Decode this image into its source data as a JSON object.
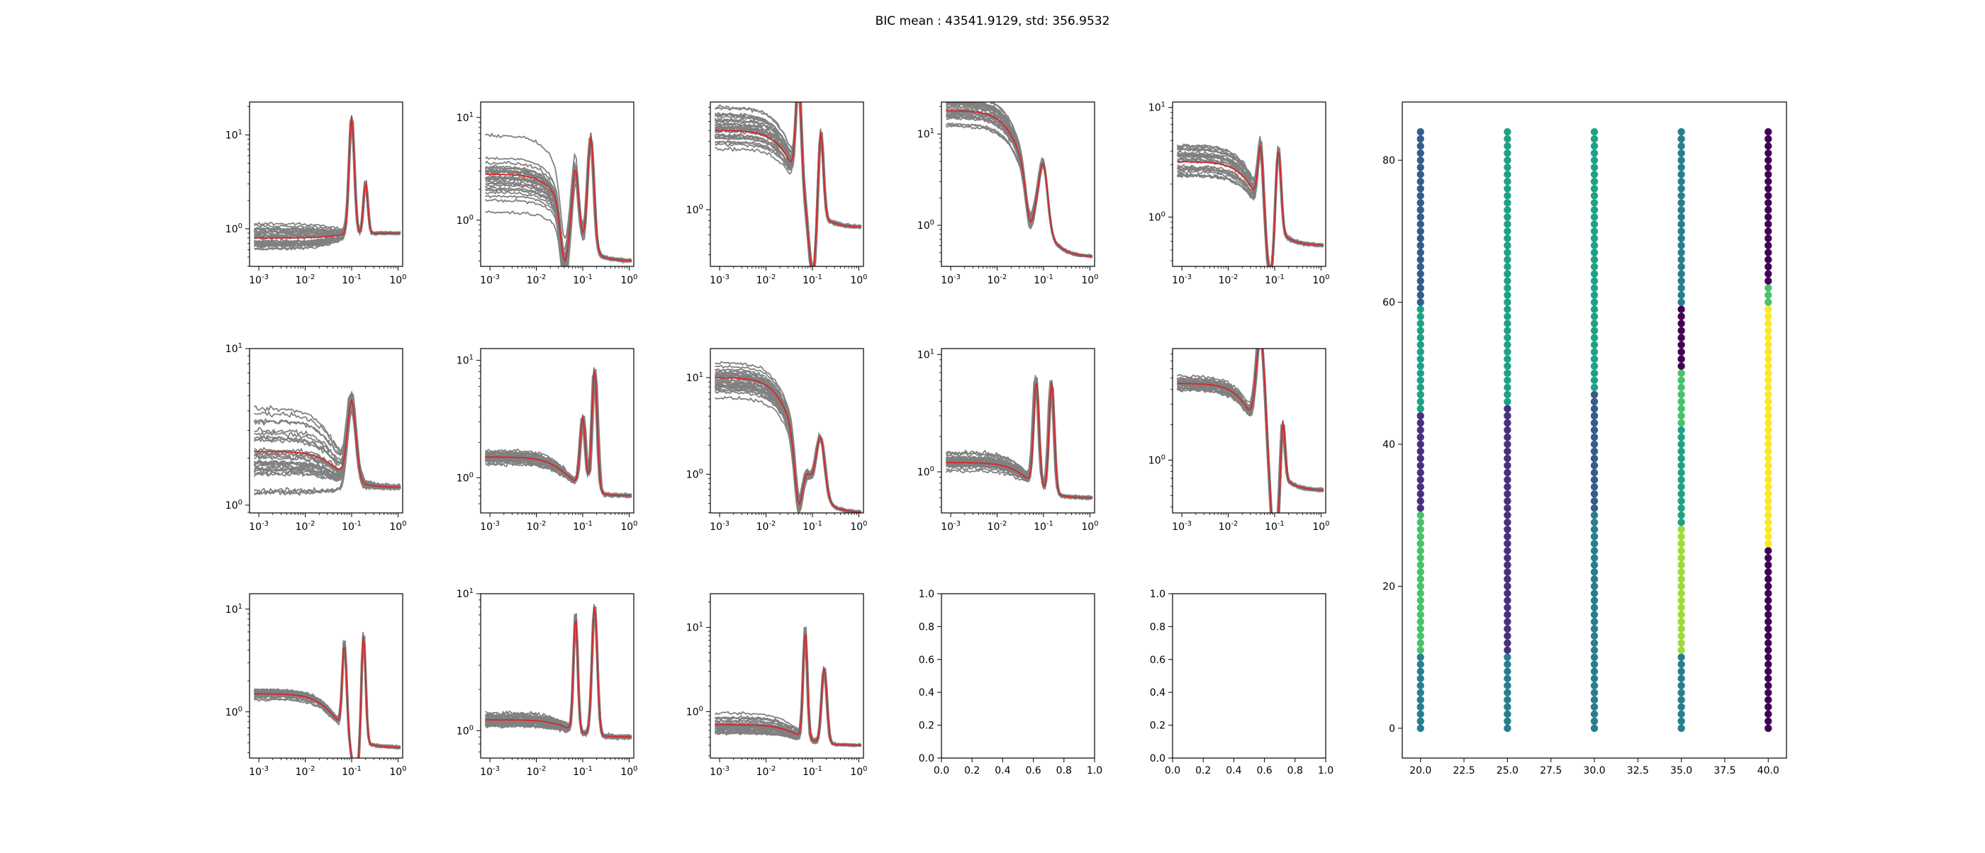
{
  "figure": {
    "suptitle": "BIC mean : 43541.9129, std: 356.9532"
  },
  "colors": {
    "sample_line": "#808080",
    "mean_line": "#d62728",
    "axes": "#000000",
    "viridis": [
      "#440154",
      "#46327e",
      "#365c8d",
      "#277f8e",
      "#1fa187",
      "#4ac16d",
      "#a0da39",
      "#fde725"
    ]
  },
  "chart_data": [
    {
      "type": "line",
      "scale": "loglog",
      "x_ticks": [
        "10-3",
        "10-2",
        "10-1",
        "100"
      ],
      "y_ticks": [
        "100",
        "101"
      ],
      "ylim_log": [
        -0.4,
        1.35
      ],
      "peaks": [
        [
          0.1,
          1.25,
          0.05
        ],
        [
          0.2,
          0.55,
          0.04
        ]
      ],
      "base": 0.8,
      "tail": 0.9,
      "spread": 0.35,
      "n_samples": 30
    },
    {
      "type": "line",
      "scale": "loglog",
      "x_ticks": [
        "10-3",
        "10-2",
        "10-1",
        "100"
      ],
      "y_ticks": [
        "100",
        "101"
      ],
      "ylim_log": [
        -0.45,
        1.15
      ],
      "peaks": [
        [
          0.07,
          0.6,
          0.06
        ],
        [
          0.15,
          1.1,
          0.06
        ]
      ],
      "dip": [
        0.04,
        -0.1
      ],
      "base": 2.8,
      "tail": 0.4,
      "spread": 0.55,
      "n_samples": 30
    },
    {
      "type": "line",
      "scale": "loglog",
      "x_ticks": [
        "10-3",
        "10-2",
        "10-1",
        "100"
      ],
      "y_ticks": [
        "100"
      ],
      "ylim_log": [
        -0.5,
        0.95
      ],
      "peaks": [
        [
          0.05,
          0.9,
          0.05
        ],
        [
          0.15,
          0.8,
          0.05
        ]
      ],
      "dip": [
        0.1,
        -0.2
      ],
      "base": 5.0,
      "tail": 0.7,
      "spread": 0.35,
      "n_samples": 30
    },
    {
      "type": "line",
      "scale": "loglog",
      "x_ticks": [
        "10-3",
        "10-2",
        "10-1",
        "100"
      ],
      "y_ticks": [
        "100",
        "101"
      ],
      "ylim_log": [
        -0.45,
        1.35
      ],
      "peaks": [
        [
          0.1,
          0.65,
          0.08
        ]
      ],
      "dip": [
        0.05,
        0.0
      ],
      "base": 18.0,
      "tail": 0.45,
      "spread": 0.3,
      "n_samples": 30
    },
    {
      "type": "line",
      "scale": "loglog",
      "x_ticks": [
        "10-3",
        "10-2",
        "10-1",
        "100"
      ],
      "y_ticks": [
        "100",
        "101"
      ],
      "ylim_log": [
        -0.45,
        1.05
      ],
      "peaks": [
        [
          0.05,
          0.55,
          0.05
        ],
        [
          0.12,
          0.8,
          0.05
        ]
      ],
      "dip": [
        0.08,
        -0.1
      ],
      "base": 3.2,
      "tail": 0.55,
      "spread": 0.35,
      "n_samples": 30
    },
    {
      "type": "line",
      "scale": "loglog",
      "x_ticks": [
        "10-3",
        "10-2",
        "10-1",
        "100"
      ],
      "y_ticks": [
        "100",
        "101"
      ],
      "ylim_log": [
        -0.05,
        1.0
      ],
      "peaks": [
        [
          0.1,
          0.5,
          0.08
        ]
      ],
      "base": 2.2,
      "tail": 1.3,
      "spread": 0.6,
      "n_samples": 30
    },
    {
      "type": "line",
      "scale": "loglog",
      "x_ticks": [
        "10-3",
        "10-2",
        "10-1",
        "100"
      ],
      "y_ticks": [
        "100",
        "101"
      ],
      "ylim_log": [
        -0.3,
        1.1
      ],
      "peaks": [
        [
          0.1,
          0.6,
          0.05
        ],
        [
          0.18,
          1.05,
          0.05
        ]
      ],
      "base": 1.5,
      "tail": 0.7,
      "spread": 0.15,
      "n_samples": 30
    },
    {
      "type": "line",
      "scale": "loglog",
      "x_ticks": [
        "10-3",
        "10-2",
        "10-1",
        "100"
      ],
      "y_ticks": [
        "100",
        "101"
      ],
      "ylim_log": [
        -0.4,
        1.3
      ],
      "peaks": [
        [
          0.15,
          0.6,
          0.08
        ]
      ],
      "dip": [
        0.05,
        -0.2
      ],
      "base": 10.0,
      "tail": 0.4,
      "spread": 0.35,
      "n_samples": 30
    },
    {
      "type": "line",
      "scale": "loglog",
      "x_ticks": [
        "10-3",
        "10-2",
        "10-1",
        "100"
      ],
      "y_ticks": [
        "100",
        "101"
      ],
      "ylim_log": [
        -0.35,
        1.05
      ],
      "peaks": [
        [
          0.07,
          0.9,
          0.05
        ],
        [
          0.15,
          0.95,
          0.05
        ]
      ],
      "base": 1.2,
      "tail": 0.6,
      "spread": 0.12,
      "n_samples": 30
    },
    {
      "type": "line",
      "scale": "loglog",
      "x_ticks": [
        "10-3",
        "10-2",
        "10-1",
        "100"
      ],
      "y_ticks": [
        "100"
      ],
      "ylim_log": [
        -0.45,
        0.95
      ],
      "peaks": [
        [
          0.05,
          0.88,
          0.08
        ],
        [
          0.15,
          0.55,
          0.04
        ]
      ],
      "dip": [
        0.1,
        -0.3
      ],
      "base": 4.5,
      "tail": 0.55,
      "spread": 0.12,
      "n_samples": 30
    },
    {
      "type": "line",
      "scale": "loglog",
      "x_ticks": [
        "10-3",
        "10-2",
        "10-1",
        "100"
      ],
      "y_ticks": [
        "100",
        "101"
      ],
      "ylim_log": [
        -0.45,
        1.15
      ],
      "peaks": [
        [
          0.07,
          0.85,
          0.04
        ],
        [
          0.18,
          1.1,
          0.04
        ]
      ],
      "dip": [
        0.12,
        0.05
      ],
      "base": 1.5,
      "tail": 0.45,
      "spread": 0.12,
      "n_samples": 30
    },
    {
      "type": "line",
      "scale": "loglog",
      "x_ticks": [
        "10-3",
        "10-2",
        "10-1",
        "100"
      ],
      "y_ticks": [
        "100",
        "101"
      ],
      "ylim_log": [
        -0.2,
        1.0
      ],
      "peaks": [
        [
          0.07,
          0.85,
          0.04
        ],
        [
          0.18,
          0.95,
          0.05
        ]
      ],
      "base": 1.2,
      "tail": 0.9,
      "spread": 0.1,
      "n_samples": 30
    },
    {
      "type": "line",
      "scale": "loglog",
      "x_ticks": [
        "10-3",
        "10-2",
        "10-1",
        "100"
      ],
      "y_ticks": [
        "100",
        "101"
      ],
      "ylim_log": [
        -0.55,
        1.4
      ],
      "peaks": [
        [
          0.07,
          1.3,
          0.04
        ],
        [
          0.18,
          0.9,
          0.05
        ]
      ],
      "base": 0.7,
      "tail": 0.4,
      "spread": 0.2,
      "n_samples": 30
    },
    {
      "type": "empty",
      "xlim": [
        0,
        1
      ],
      "ylim": [
        0,
        1
      ],
      "x_ticks": [
        "0.0",
        "0.2",
        "0.4",
        "0.6",
        "0.8",
        "1.0"
      ],
      "y_ticks": [
        "0.0",
        "0.2",
        "0.4",
        "0.6",
        "0.8",
        "1.0"
      ]
    },
    {
      "type": "empty",
      "xlim": [
        0,
        1
      ],
      "ylim": [
        0,
        1
      ],
      "x_ticks": [
        "0.0",
        "0.2",
        "0.4",
        "0.6",
        "0.8",
        "1.0"
      ],
      "y_ticks": [
        "0.0",
        "0.2",
        "0.4",
        "0.6",
        "0.8",
        "1.0"
      ]
    },
    {
      "type": "scatter",
      "xlim": [
        18.95,
        41.05
      ],
      "ylim": [
        -4.2,
        88.2
      ],
      "x_ticks": [
        "20.0",
        "22.5",
        "25.0",
        "27.5",
        "30.0",
        "32.5",
        "35.0",
        "37.5",
        "40.0"
      ],
      "y_ticks": [
        "0",
        "20",
        "40",
        "60",
        "80"
      ],
      "y_range": [
        0,
        84
      ],
      "columns": [
        {
          "x": 20.0,
          "segments": [
            [
              0,
              10,
              3
            ],
            [
              11,
              30,
              5
            ],
            [
              31,
              44,
              1
            ],
            [
              45,
              59,
              4
            ],
            [
              60,
              84,
              2
            ]
          ]
        },
        {
          "x": 25.0,
          "segments": [
            [
              0,
              10,
              3
            ],
            [
              11,
              45,
              1
            ],
            [
              46,
              84,
              4
            ]
          ]
        },
        {
          "x": 30.0,
          "segments": [
            [
              0,
              30,
              3
            ],
            [
              31,
              47,
              2
            ],
            [
              48,
              84,
              4
            ]
          ]
        },
        {
          "x": 35.0,
          "segments": [
            [
              0,
              10,
              3
            ],
            [
              11,
              28,
              6
            ],
            [
              29,
              42,
              4
            ],
            [
              43,
              50,
              5
            ],
            [
              51,
              59,
              0
            ],
            [
              60,
              84,
              3
            ]
          ]
        },
        {
          "x": 40.0,
          "segments": [
            [
              0,
              25,
              0
            ],
            [
              26,
              59,
              7
            ],
            [
              60,
              62,
              5
            ],
            [
              63,
              84,
              0
            ]
          ]
        }
      ]
    }
  ]
}
